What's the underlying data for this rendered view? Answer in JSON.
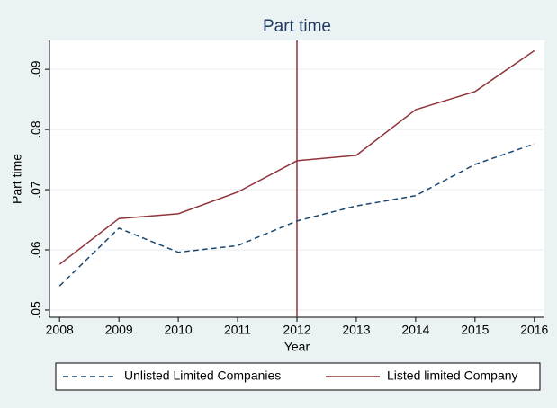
{
  "chart_data": {
    "type": "line",
    "title": "Part time",
    "x_label": "Year",
    "y_label": "Part time",
    "x": [
      2008,
      2009,
      2010,
      2011,
      2012,
      2013,
      2014,
      2015,
      2016
    ],
    "series": [
      {
        "name": "Unlisted Limited Companies",
        "color": "#1a476f",
        "dash": true,
        "values": [
          0.054,
          0.0636,
          0.0596,
          0.0607,
          0.0648,
          0.0673,
          0.069,
          0.0742,
          0.0776
        ]
      },
      {
        "name": "Listed limited Company",
        "color": "#90353b",
        "dash": false,
        "values": [
          0.0576,
          0.0652,
          0.066,
          0.0696,
          0.0748,
          0.0757,
          0.0833,
          0.0863,
          0.0931
        ]
      }
    ],
    "vline": 2012,
    "vline_color": "#90353b",
    "xlim": [
      2007.83,
      2016.17
    ],
    "xticks": [
      2008,
      2009,
      2010,
      2011,
      2012,
      2013,
      2014,
      2015,
      2016
    ],
    "ylim": [
      0.0488,
      0.0948
    ],
    "yticks": [
      {
        "value": 0.05,
        "label": ".05"
      },
      {
        "value": 0.06,
        "label": ".06"
      },
      {
        "value": 0.07,
        "label": ".07"
      },
      {
        "value": 0.08,
        "label": ".08"
      },
      {
        "value": 0.09,
        "label": ".09"
      }
    ],
    "grid": true,
    "legend": "bottom"
  }
}
